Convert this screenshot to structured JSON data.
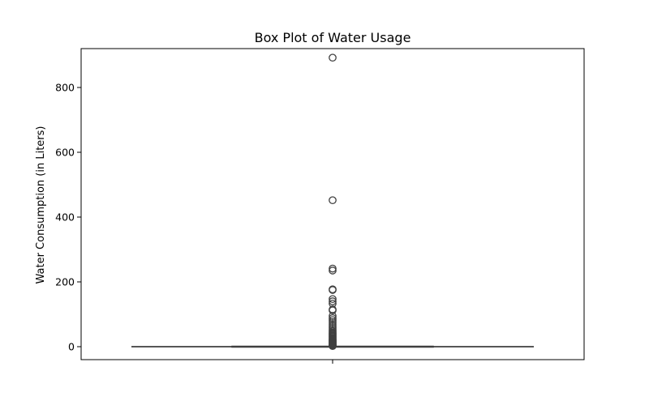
{
  "chart_data": {
    "type": "box",
    "title": "Box Plot of Water Usage",
    "xlabel": "",
    "ylabel": "Water Consumption (in Liters)",
    "ylim": [
      -40,
      920
    ],
    "yticks": [
      0,
      200,
      400,
      600,
      800
    ],
    "ytick_labels": [
      "0",
      "200",
      "400",
      "600",
      "800"
    ],
    "grid": false,
    "box": {
      "whisker_low": 0,
      "q1": 0,
      "median": 0,
      "q3": 0,
      "whisker_high": 0
    },
    "outliers": [
      892,
      452,
      241,
      235,
      177,
      175,
      147,
      140,
      133,
      115,
      112,
      95,
      88,
      82,
      76,
      70,
      64,
      58,
      52,
      47,
      43,
      40,
      37,
      34,
      31,
      28,
      25,
      22,
      20,
      18,
      16,
      14,
      12,
      10,
      8,
      6,
      4,
      3,
      2
    ],
    "colors": {
      "box_line": "#3f3f3f",
      "box_fill": "#3274a1",
      "axis": "#000000"
    }
  }
}
